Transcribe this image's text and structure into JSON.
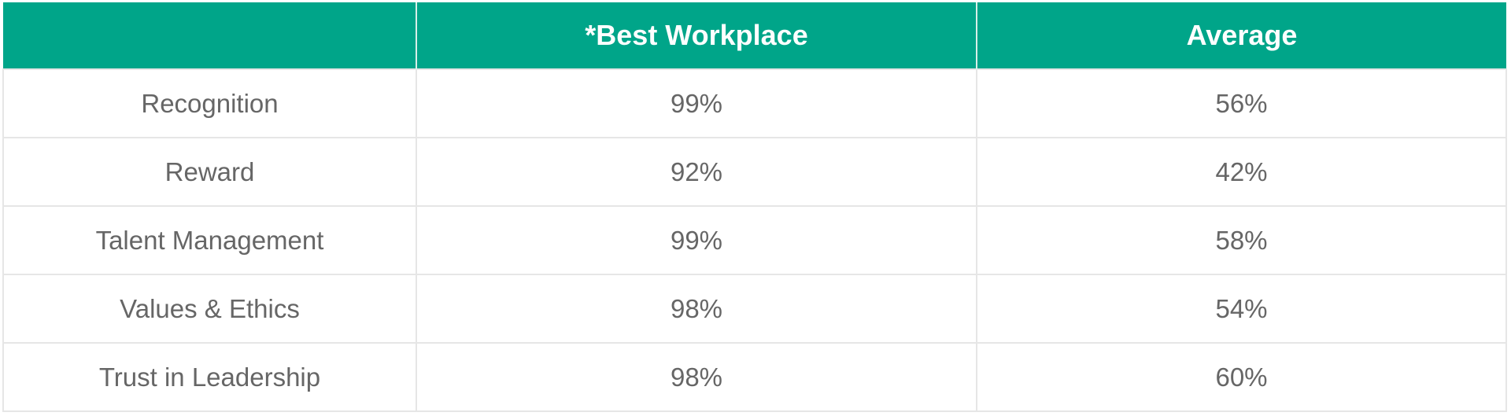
{
  "colors": {
    "header_bg": "#00a589",
    "header_text": "#ffffff",
    "cell_text": "#666666",
    "grid": "#e6e6e6"
  },
  "chart_data": {
    "type": "table",
    "columns": [
      "",
      "*Best Workplace",
      "Average"
    ],
    "rows": [
      [
        "Recognition",
        "99%",
        "56%"
      ],
      [
        "Reward",
        "92%",
        "42%"
      ],
      [
        "Talent Management",
        "99%",
        "58%"
      ],
      [
        "Values & Ethics",
        "98%",
        "54%"
      ],
      [
        "Trust in Leadership",
        "98%",
        "60%"
      ]
    ]
  }
}
